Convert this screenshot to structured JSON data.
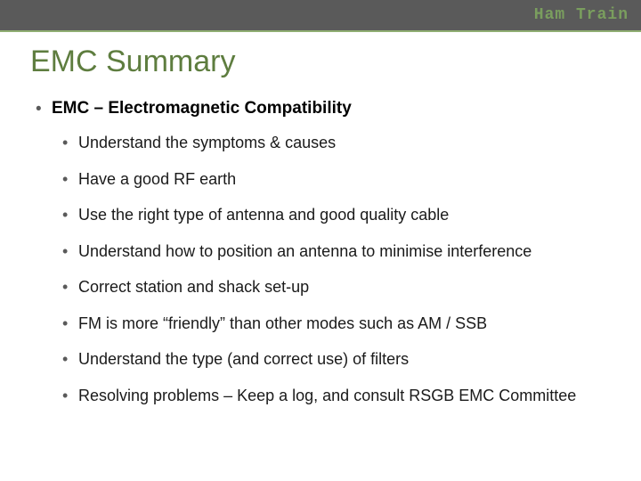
{
  "colors": {
    "header_bg": "#5a5a5a",
    "brand_text": "#7a9e5e",
    "divider": "#8fae72",
    "title": "#5e7d3f",
    "body_text": "#1a1a1a",
    "bullet": "#5a5a5a",
    "background": "#ffffff"
  },
  "brand": "Ham Train",
  "title": "EMC Summary",
  "level1": {
    "text": "EMC – Electromagnetic Compatibility"
  },
  "bullets": [
    "Understand the symptoms & causes",
    "Have a good RF earth",
    "Use the right type of antenna and good quality cable",
    "Understand how to position an antenna to minimise interference",
    "Correct station and shack  set-up",
    "FM is more “friendly” than other modes such as AM / SSB",
    "Understand the type (and correct use) of filters",
    "Resolving problems – Keep a log, and consult RSGB EMC Committee"
  ],
  "typography": {
    "title_fontsize": 34,
    "level1_fontsize": 19,
    "level2_fontsize": 18,
    "brand_fontsize": 18
  }
}
